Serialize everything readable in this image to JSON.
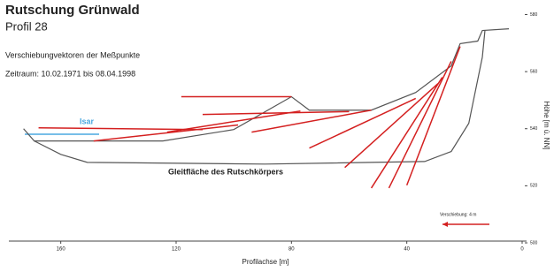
{
  "chart_data": {
    "type": "line",
    "title": "Rutschung Grünwald",
    "subtitle": "Profil 28",
    "annotations": [
      "Verschiebungvektoren der Meßpunkte",
      "Zeitraum:  10.02.1971 bis 08.04.1998",
      "Isar",
      "Gleitfläche des Rutschkörpers",
      "Verschiebung: 4 m"
    ],
    "x_label": "Profilachse  [m]",
    "y_label": "Höhe  [m ü. NN]",
    "xlim": [
      178,
      0
    ],
    "xticks": [
      160,
      120,
      80,
      40,
      0
    ],
    "ylim": [
      500,
      582
    ],
    "yticks": [
      580,
      560,
      540,
      520,
      500
    ],
    "series": [
      {
        "color": "#555555",
        "x": [
          172.9,
          169.2,
          124.6,
          100,
          80,
          73.8,
          52.3,
          36.9,
          24.6,
          21.5,
          15.4,
          13.8,
          4.6
        ],
        "values": [
          540.0,
          535.7,
          535.7,
          539.7,
          551.2,
          546.5,
          546.5,
          552.7,
          562.0,
          569.8,
          570.7,
          574.4,
          575.0
        ]
      },
      {
        "color": "#555555",
        "x": [
          169.2,
          160,
          150.8,
          89.2,
          33.8,
          24.6,
          18.5,
          13.8,
          12.9
        ],
        "values": [
          535.7,
          531,
          528.2,
          527.6,
          528.5,
          532,
          541.9,
          565.1,
          574.4
        ]
      }
    ],
    "vectors": {
      "color": "#d42020",
      "segments": [
        [
          118.2,
          551.2,
          80,
          551.2
        ],
        [
          167.7,
          540.3,
          110.8,
          539.7
        ],
        [
          148.6,
          535.7,
          98.5,
          541.3
        ],
        [
          123.1,
          538.8,
          76.9,
          546.2
        ],
        [
          110.8,
          545.0,
          60,
          546.0
        ],
        [
          93.8,
          538.8,
          52.3,
          546.5
        ],
        [
          73.8,
          533.2,
          36.9,
          550.6
        ],
        [
          61.5,
          526.4,
          29.2,
          555.8
        ],
        [
          52.3,
          519.2,
          27.7,
          558.0
        ],
        [
          46.2,
          519.2,
          24.6,
          563.6
        ],
        [
          40,
          520.2,
          21.5,
          568.8
        ]
      ]
    }
  }
}
